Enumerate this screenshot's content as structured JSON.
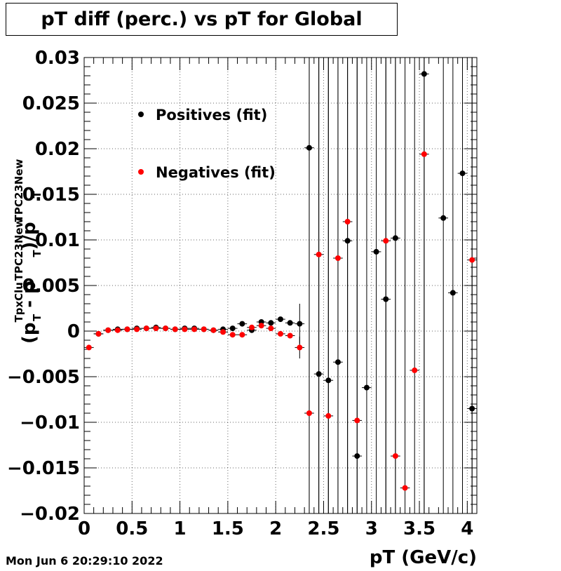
{
  "chart_data": {
    "type": "scatter",
    "title": "pT diff (perc.) vs pT for Global",
    "xlabel": "pT (GeV/c)",
    "ylabel": {
      "open": "(p",
      "sup1": "TpxClu",
      "sub1": "T",
      "mid": " - p",
      "sup2": "TPC23New",
      "sub2": "T",
      "close": ")/p",
      "sup3": "TPC23New",
      "sub3": "T"
    },
    "xlim": [
      0,
      4.1
    ],
    "ylim": [
      -0.02,
      0.03
    ],
    "x_ticks": [
      {
        "v": 0,
        "label": "0"
      },
      {
        "v": 0.5,
        "label": "0.5"
      },
      {
        "v": 1,
        "label": "1"
      },
      {
        "v": 1.5,
        "label": "1.5"
      },
      {
        "v": 2,
        "label": "2"
      },
      {
        "v": 2.5,
        "label": "2.5"
      },
      {
        "v": 3,
        "label": "3"
      },
      {
        "v": 3.5,
        "label": "3.5"
      },
      {
        "v": 4,
        "label": "4"
      }
    ],
    "y_ticks": [
      {
        "v": 0.03,
        "label": "0.03"
      },
      {
        "v": 0.025,
        "label": "0.025"
      },
      {
        "v": 0.02,
        "label": "0.02"
      },
      {
        "v": 0.015,
        "label": "0.015"
      },
      {
        "v": 0.01,
        "label": "0.01"
      },
      {
        "v": 0.005,
        "label": "0.005"
      },
      {
        "v": 0,
        "label": "0"
      },
      {
        "v": -0.005,
        "label": "−0.005"
      },
      {
        "v": -0.01,
        "label": "−0.01"
      },
      {
        "v": -0.015,
        "label": "−0.015"
      },
      {
        "v": -0.02,
        "label": "−0.02"
      }
    ],
    "grid": true,
    "legend_placement": "top-left",
    "x": [
      0.05,
      0.15,
      0.25,
      0.35,
      0.45,
      0.55,
      0.65,
      0.75,
      0.85,
      0.95,
      1.05,
      1.15,
      1.25,
      1.35,
      1.45,
      1.55,
      1.65,
      1.75,
      1.85,
      1.95,
      2.05,
      2.15,
      2.25,
      2.35,
      2.45,
      2.55,
      2.65,
      2.75,
      2.85,
      2.95,
      3.05,
      3.15,
      3.25,
      3.35,
      3.45,
      3.55,
      3.65,
      3.75,
      3.85,
      3.95,
      4.05
    ],
    "series": [
      {
        "name": "Positives (fit)",
        "color": "#000000",
        "values": [
          null,
          -0.0003,
          0.0001,
          0.0002,
          0.0002,
          0.0003,
          0.0003,
          0.0004,
          0.0003,
          0.0002,
          0.0003,
          0.0003,
          0.0002,
          0.0001,
          0.0002,
          0.0003,
          0.0008,
          0.0001,
          0.001,
          0.0009,
          0.0013,
          0.0009,
          0.0008,
          0.0201,
          -0.0047,
          -0.0054,
          -0.0034,
          0.0099,
          -0.0137,
          -0.0062,
          0.0087,
          0.0035,
          0.0102,
          null,
          null,
          0.0282,
          null,
          0.0124,
          0.0042,
          0.0173,
          -0.0085
        ],
        "errors": [
          0,
          0,
          0,
          0,
          0,
          0,
          0,
          0,
          0,
          0,
          0,
          0,
          0,
          0,
          0,
          0,
          0,
          0,
          0,
          0,
          0,
          0,
          0.0022,
          0.1,
          0.1,
          0.1,
          0.1,
          0.1,
          0.1,
          0.1,
          0.1,
          0.1,
          0.1,
          0,
          0,
          0.1,
          0,
          0.1,
          0.1,
          0.1,
          0.1
        ]
      },
      {
        "name": "Negatives (fit)",
        "color": "#ff0000",
        "values": [
          -0.0018,
          -0.0003,
          0.0001,
          0.0001,
          0.0002,
          0.0002,
          0.0003,
          0.0003,
          0.0003,
          0.0002,
          0.0002,
          0.0002,
          0.0002,
          0.0001,
          -0.0001,
          -0.0004,
          -0.0004,
          0.0004,
          0.0006,
          0.0003,
          -0.0003,
          -0.0005,
          -0.0018,
          -0.009,
          0.0084,
          -0.0093,
          0.008,
          0.012,
          -0.0098,
          null,
          null,
          0.0099,
          -0.0137,
          -0.0172,
          -0.0043,
          0.0194,
          null,
          null,
          null,
          null,
          0.0078
        ],
        "errors": [
          0,
          0,
          0,
          0,
          0,
          0,
          0,
          0,
          0,
          0,
          0,
          0,
          0,
          0,
          0,
          0,
          0,
          0,
          0,
          0,
          0,
          0,
          0.0012,
          0.1,
          0.1,
          0.1,
          0.1,
          0.1,
          0.1,
          0,
          0,
          0.1,
          0.1,
          0.1,
          0.1,
          0.1,
          0,
          0,
          0,
          0,
          0.1
        ]
      }
    ]
  },
  "footer": {
    "timestamp": "Mon Jun  6 20:29:10 2022"
  }
}
